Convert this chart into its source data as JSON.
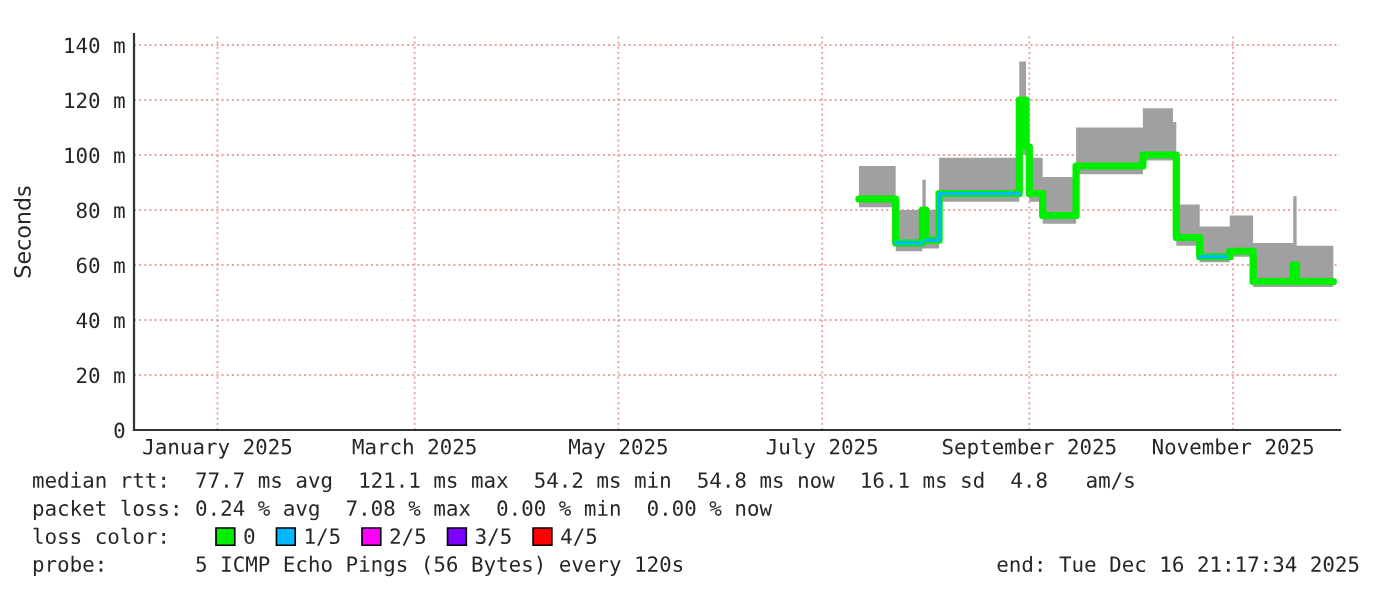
{
  "chart_data": {
    "type": "line",
    "ylabel": "Seconds",
    "legend_title": "loss color:",
    "legend": "bottom",
    "grid": true,
    "marker": "none",
    "line_style": "solid",
    "xlim": [
      "2024-12-22",
      "2025-12-18"
    ],
    "xticks": [
      {
        "value": "2025-01-16",
        "label": "January 2025"
      },
      {
        "value": "2025-03-16",
        "label": "March 2025"
      },
      {
        "value": "2025-05-16",
        "label": "May 2025"
      },
      {
        "value": "2025-07-16",
        "label": "July 2025"
      },
      {
        "value": "2025-09-16",
        "label": "September 2025"
      },
      {
        "value": "2025-11-16",
        "label": "November 2025"
      }
    ],
    "ylim": [
      0,
      144
    ],
    "yticks": [
      0,
      {
        "value": 20,
        "label": "20 m"
      },
      {
        "value": 40,
        "label": "40 m"
      },
      {
        "value": 60,
        "label": "60 m"
      },
      {
        "value": 80,
        "label": "80 m"
      },
      {
        "value": 100,
        "label": "100 m"
      },
      {
        "value": 120,
        "label": "120 m"
      },
      {
        "value": 140,
        "label": "140 m"
      }
    ],
    "series": [
      {
        "name": "0",
        "color": "#00ee00",
        "x": [
          "2025-07-27",
          "2025-08-06",
          "2025-08-07",
          "2025-08-14",
          "2025-08-15",
          "2025-08-16",
          "2025-08-19",
          "2025-08-20",
          "2025-09-12",
          "2025-09-13",
          "2025-09-15",
          "2025-09-16",
          "2025-09-19",
          "2025-09-20",
          "2025-09-29",
          "2025-09-30",
          "2025-10-19",
          "2025-10-20",
          "2025-10-29",
          "2025-10-30",
          "2025-11-05",
          "2025-11-06",
          "2025-11-14",
          "2025-11-15",
          "2025-11-21",
          "2025-11-22",
          "2025-12-03",
          "2025-12-04",
          "2025-12-05",
          "2025-12-16"
        ],
        "values": [
          84,
          84,
          68,
          68,
          80,
          69,
          69,
          86,
          86,
          120,
          103,
          86,
          86,
          78,
          78,
          96,
          96,
          100,
          100,
          70,
          70,
          63,
          63,
          65,
          65,
          54,
          54,
          60,
          54,
          54
        ],
        "lower": [
          81,
          81,
          65,
          65,
          66,
          66,
          66,
          83,
          83,
          100,
          95,
          83,
          83,
          75,
          75,
          93,
          93,
          98,
          98,
          67,
          67,
          61,
          61,
          63,
          63,
          52,
          52,
          52,
          52,
          52
        ],
        "upper": [
          96,
          96,
          80,
          80,
          91,
          80,
          80,
          99,
          99,
          134,
          110,
          99,
          99,
          92,
          92,
          110,
          110,
          117,
          112,
          82,
          82,
          74,
          74,
          78,
          78,
          68,
          68,
          85,
          67,
          67
        ]
      },
      {
        "name": "1/5",
        "color": "#00b8ff",
        "x": [
          "2025-08-07",
          "2025-08-14",
          "2025-08-15",
          "2025-08-16",
          "2025-08-19",
          "2025-08-20",
          "2025-09-12",
          "2025-09-13",
          "2025-11-06",
          "2025-11-14"
        ],
        "values": [
          68,
          68,
          null,
          69,
          69,
          86,
          86,
          null,
          63,
          63
        ]
      },
      {
        "name": "2/5",
        "color": "#ff00ff"
      },
      {
        "name": "3/5",
        "color": "#7e00ff"
      },
      {
        "name": "4/5",
        "color": "#ff0000"
      }
    ],
    "annotations": [
      "median rtt:  77.7 ms avg  121.1 ms max  54.2 ms min  54.8 ms now  16.1 ms sd  4.8   am/s",
      "packet loss: 0.24 % avg  7.08 % max  0.00 % min  0.00 % now",
      "probe:       5 ICMP Echo Pings (56 Bytes) every 120s",
      "end: Tue Dec 16 21:17:34 2025"
    ]
  }
}
